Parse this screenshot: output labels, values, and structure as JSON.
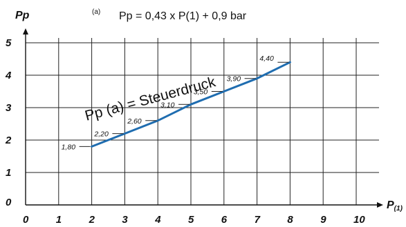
{
  "chart_data": {
    "type": "line",
    "title": "Pp = 0,43 x P(1) + 0,9 bar",
    "title_tag": "(a)",
    "annotation": "Pp (a) = Steuerdruck",
    "xlabel": "P",
    "xlabel_sub": "(1)",
    "ylabel": "Pp",
    "xlim": [
      0,
      10
    ],
    "ylim": [
      0,
      5
    ],
    "x_ticks": [
      "0",
      "1",
      "2",
      "3",
      "4",
      "5",
      "6",
      "7",
      "8",
      "9",
      "10"
    ],
    "y_ticks": [
      "0",
      "1",
      "2",
      "3",
      "4",
      "5"
    ],
    "grid": true,
    "series": [
      {
        "color": "#1f6db0",
        "x": [
          2,
          3,
          4,
          5,
          6,
          7,
          8
        ],
        "y": [
          1.8,
          2.2,
          2.6,
          3.1,
          3.5,
          3.9,
          4.4
        ]
      }
    ],
    "data_labels": [
      "1,80",
      "2,20",
      "2,60",
      "3,10",
      "3,50",
      "3,90",
      "4,40"
    ]
  }
}
